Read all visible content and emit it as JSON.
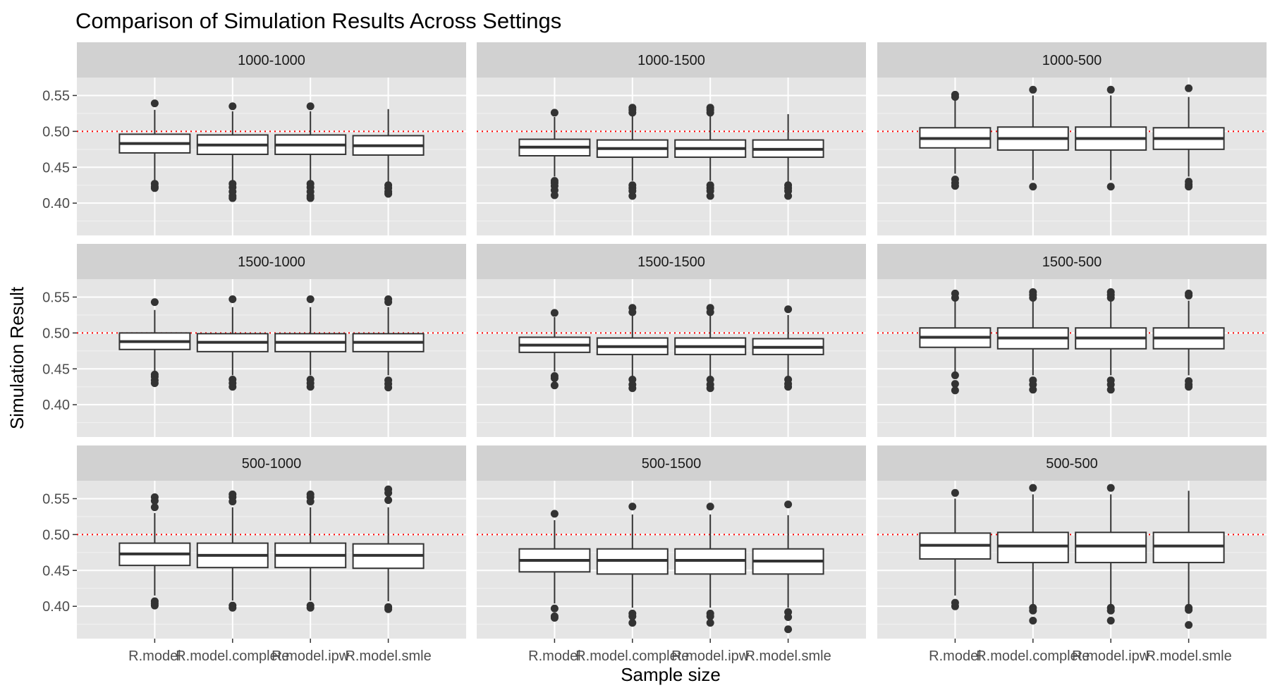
{
  "chart_data": {
    "type": "boxplot",
    "title": "Comparison of Simulation Results Across Settings",
    "xlabel": "Sample size",
    "ylabel": "Simulation Result",
    "categories": [
      "R.model",
      "R.model.complete",
      "R.model.ipw",
      "R.model.smle"
    ],
    "ylim": [
      0.355,
      0.575
    ],
    "yticks": [
      0.4,
      0.45,
      0.5,
      0.55
    ],
    "ytick_labels": [
      "0.40",
      "0.45",
      "0.50",
      "0.55"
    ],
    "reference_line": {
      "y": 0.5,
      "color": "#ff0000",
      "style": "dotted"
    },
    "panel_background": "#e5e5e5",
    "strip_background": "#d1d1d1",
    "grid": true,
    "facets": [
      {
        "label": "1000-1000",
        "boxes": [
          {
            "category": "R.model",
            "lower_whisker": 0.432,
            "q1": 0.47,
            "median": 0.483,
            "q3": 0.496,
            "upper_whisker": 0.53,
            "outliers": [
              0.539,
              0.427,
              0.423,
              0.421
            ]
          },
          {
            "category": "R.model.complete",
            "lower_whisker": 0.432,
            "q1": 0.468,
            "median": 0.481,
            "q3": 0.495,
            "upper_whisker": 0.528,
            "outliers": [
              0.535,
              0.427,
              0.422,
              0.416,
              0.41,
              0.407
            ]
          },
          {
            "category": "R.model.ipw",
            "lower_whisker": 0.432,
            "q1": 0.468,
            "median": 0.481,
            "q3": 0.495,
            "upper_whisker": 0.528,
            "outliers": [
              0.535,
              0.427,
              0.422,
              0.416,
              0.41,
              0.407
            ]
          },
          {
            "category": "R.model.smle",
            "lower_whisker": 0.43,
            "q1": 0.467,
            "median": 0.48,
            "q3": 0.494,
            "upper_whisker": 0.531,
            "outliers": [
              0.425,
              0.421,
              0.416,
              0.413
            ]
          }
        ]
      },
      {
        "label": "1000-1500",
        "boxes": [
          {
            "category": "R.model",
            "lower_whisker": 0.437,
            "q1": 0.466,
            "median": 0.478,
            "q3": 0.489,
            "upper_whisker": 0.52,
            "outliers": [
              0.526,
              0.431,
              0.428,
              0.424,
              0.418,
              0.411
            ]
          },
          {
            "category": "R.model.complete",
            "lower_whisker": 0.431,
            "q1": 0.464,
            "median": 0.476,
            "q3": 0.488,
            "upper_whisker": 0.521,
            "outliers": [
              0.533,
              0.53,
              0.526,
              0.425,
              0.421,
              0.417,
              0.41
            ]
          },
          {
            "category": "R.model.ipw",
            "lower_whisker": 0.431,
            "q1": 0.464,
            "median": 0.476,
            "q3": 0.488,
            "upper_whisker": 0.521,
            "outliers": [
              0.533,
              0.53,
              0.526,
              0.425,
              0.421,
              0.417,
              0.41
            ]
          },
          {
            "category": "R.model.smle",
            "lower_whisker": 0.43,
            "q1": 0.464,
            "median": 0.475,
            "q3": 0.488,
            "upper_whisker": 0.524,
            "outliers": [
              0.425,
              0.421,
              0.417,
              0.41
            ]
          }
        ]
      },
      {
        "label": "1000-500",
        "boxes": [
          {
            "category": "R.model",
            "lower_whisker": 0.441,
            "q1": 0.477,
            "median": 0.49,
            "q3": 0.505,
            "upper_whisker": 0.545,
            "outliers": [
              0.551,
              0.548,
              0.433,
              0.428,
              0.424
            ]
          },
          {
            "category": "R.model.complete",
            "lower_whisker": 0.432,
            "q1": 0.474,
            "median": 0.49,
            "q3": 0.506,
            "upper_whisker": 0.55,
            "outliers": [
              0.558,
              0.423
            ]
          },
          {
            "category": "R.model.ipw",
            "lower_whisker": 0.432,
            "q1": 0.474,
            "median": 0.49,
            "q3": 0.506,
            "upper_whisker": 0.55,
            "outliers": [
              0.558,
              0.423
            ]
          },
          {
            "category": "R.model.smle",
            "lower_whisker": 0.437,
            "q1": 0.475,
            "median": 0.49,
            "q3": 0.505,
            "upper_whisker": 0.548,
            "outliers": [
              0.56,
              0.43,
              0.426,
              0.423
            ]
          }
        ]
      },
      {
        "label": "1500-1000",
        "boxes": [
          {
            "category": "R.model",
            "lower_whisker": 0.446,
            "q1": 0.477,
            "median": 0.488,
            "q3": 0.5,
            "upper_whisker": 0.532,
            "outliers": [
              0.543,
              0.442,
              0.439,
              0.434,
              0.43
            ]
          },
          {
            "category": "R.model.complete",
            "lower_whisker": 0.441,
            "q1": 0.474,
            "median": 0.487,
            "q3": 0.499,
            "upper_whisker": 0.536,
            "outliers": [
              0.547,
              0.435,
              0.43,
              0.425
            ]
          },
          {
            "category": "R.model.ipw",
            "lower_whisker": 0.441,
            "q1": 0.474,
            "median": 0.487,
            "q3": 0.499,
            "upper_whisker": 0.536,
            "outliers": [
              0.547,
              0.435,
              0.43,
              0.425
            ]
          },
          {
            "category": "R.model.smle",
            "lower_whisker": 0.441,
            "q1": 0.474,
            "median": 0.487,
            "q3": 0.499,
            "upper_whisker": 0.536,
            "outliers": [
              0.547,
              0.543,
              0.434,
              0.429,
              0.424
            ]
          }
        ]
      },
      {
        "label": "1500-1500",
        "boxes": [
          {
            "category": "R.model",
            "lower_whisker": 0.446,
            "q1": 0.473,
            "median": 0.483,
            "q3": 0.494,
            "upper_whisker": 0.522,
            "outliers": [
              0.528,
              0.44,
              0.437,
              0.427
            ]
          },
          {
            "category": "R.model.complete",
            "lower_whisker": 0.44,
            "q1": 0.47,
            "median": 0.481,
            "q3": 0.493,
            "upper_whisker": 0.524,
            "outliers": [
              0.535,
              0.529,
              0.435,
              0.428,
              0.423
            ]
          },
          {
            "category": "R.model.ipw",
            "lower_whisker": 0.44,
            "q1": 0.47,
            "median": 0.481,
            "q3": 0.493,
            "upper_whisker": 0.524,
            "outliers": [
              0.535,
              0.529,
              0.435,
              0.428,
              0.423
            ]
          },
          {
            "category": "R.model.smle",
            "lower_whisker": 0.44,
            "q1": 0.47,
            "median": 0.48,
            "q3": 0.492,
            "upper_whisker": 0.525,
            "outliers": [
              0.533,
              0.435,
              0.429,
              0.425
            ]
          }
        ]
      },
      {
        "label": "1500-500",
        "boxes": [
          {
            "category": "R.model",
            "lower_whisker": 0.445,
            "q1": 0.48,
            "median": 0.494,
            "q3": 0.507,
            "upper_whisker": 0.545,
            "outliers": [
              0.555,
              0.549,
              0.441,
              0.429,
              0.42
            ]
          },
          {
            "category": "R.model.complete",
            "lower_whisker": 0.441,
            "q1": 0.478,
            "median": 0.493,
            "q3": 0.507,
            "upper_whisker": 0.545,
            "outliers": [
              0.557,
              0.553,
              0.549,
              0.434,
              0.428,
              0.421
            ]
          },
          {
            "category": "R.model.ipw",
            "lower_whisker": 0.441,
            "q1": 0.478,
            "median": 0.493,
            "q3": 0.507,
            "upper_whisker": 0.545,
            "outliers": [
              0.557,
              0.553,
              0.549,
              0.434,
              0.428,
              0.421
            ]
          },
          {
            "category": "R.model.smle",
            "lower_whisker": 0.441,
            "q1": 0.478,
            "median": 0.493,
            "q3": 0.507,
            "upper_whisker": 0.545,
            "outliers": [
              0.555,
              0.552,
              0.433,
              0.428,
              0.425
            ]
          }
        ]
      },
      {
        "label": "500-1000",
        "boxes": [
          {
            "category": "R.model",
            "lower_whisker": 0.415,
            "q1": 0.457,
            "median": 0.473,
            "q3": 0.488,
            "upper_whisker": 0.53,
            "outliers": [
              0.552,
              0.547,
              0.538,
              0.407,
              0.404,
              0.401
            ]
          },
          {
            "category": "R.model.complete",
            "lower_whisker": 0.408,
            "q1": 0.454,
            "median": 0.471,
            "q3": 0.488,
            "upper_whisker": 0.538,
            "outliers": [
              0.556,
              0.552,
              0.546,
              0.401,
              0.398
            ]
          },
          {
            "category": "R.model.ipw",
            "lower_whisker": 0.408,
            "q1": 0.454,
            "median": 0.471,
            "q3": 0.488,
            "upper_whisker": 0.538,
            "outliers": [
              0.556,
              0.552,
              0.546,
              0.401,
              0.398
            ]
          },
          {
            "category": "R.model.smle",
            "lower_whisker": 0.407,
            "q1": 0.453,
            "median": 0.471,
            "q3": 0.487,
            "upper_whisker": 0.538,
            "outliers": [
              0.563,
              0.558,
              0.548,
              0.399,
              0.396
            ]
          }
        ]
      },
      {
        "label": "500-1500",
        "boxes": [
          {
            "category": "R.model",
            "lower_whisker": 0.404,
            "q1": 0.448,
            "median": 0.464,
            "q3": 0.48,
            "upper_whisker": 0.52,
            "outliers": [
              0.529,
              0.397,
              0.386,
              0.384
            ]
          },
          {
            "category": "R.model.complete",
            "lower_whisker": 0.398,
            "q1": 0.445,
            "median": 0.464,
            "q3": 0.48,
            "upper_whisker": 0.528,
            "outliers": [
              0.539,
              0.39,
              0.386,
              0.377
            ]
          },
          {
            "category": "R.model.ipw",
            "lower_whisker": 0.398,
            "q1": 0.445,
            "median": 0.464,
            "q3": 0.48,
            "upper_whisker": 0.528,
            "outliers": [
              0.539,
              0.39,
              0.386,
              0.377
            ]
          },
          {
            "category": "R.model.smle",
            "lower_whisker": 0.398,
            "q1": 0.445,
            "median": 0.463,
            "q3": 0.48,
            "upper_whisker": 0.527,
            "outliers": [
              0.542,
              0.392,
              0.385,
              0.368
            ]
          }
        ]
      },
      {
        "label": "500-500",
        "boxes": [
          {
            "category": "R.model",
            "lower_whisker": 0.415,
            "q1": 0.466,
            "median": 0.485,
            "q3": 0.502,
            "upper_whisker": 0.55,
            "outliers": [
              0.558,
              0.405,
              0.4
            ]
          },
          {
            "category": "R.model.complete",
            "lower_whisker": 0.402,
            "q1": 0.461,
            "median": 0.484,
            "q3": 0.503,
            "upper_whisker": 0.556,
            "outliers": [
              0.565,
              0.398,
              0.394,
              0.38
            ]
          },
          {
            "category": "R.model.ipw",
            "lower_whisker": 0.402,
            "q1": 0.461,
            "median": 0.484,
            "q3": 0.503,
            "upper_whisker": 0.556,
            "outliers": [
              0.565,
              0.398,
              0.394,
              0.38
            ]
          },
          {
            "category": "R.model.smle",
            "lower_whisker": 0.402,
            "q1": 0.461,
            "median": 0.484,
            "q3": 0.503,
            "upper_whisker": 0.561,
            "outliers": [
              0.398,
              0.395,
              0.374
            ]
          }
        ]
      }
    ]
  }
}
